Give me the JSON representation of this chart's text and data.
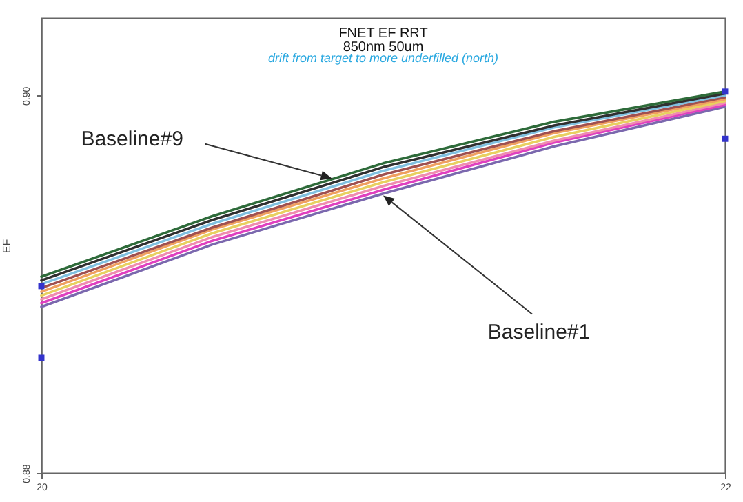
{
  "chart_data": {
    "type": "line",
    "title": "FNET EF RRT",
    "subtitle": "850nm 50um",
    "ylabel": "EF",
    "xlim": [
      20,
      22
    ],
    "xticks": [
      20,
      22
    ],
    "ylim": [
      0.88,
      0.9041
    ],
    "yticks": [
      0.88,
      {
        "value": 0.9,
        "label": "0.90"
      }
    ],
    "grid": false,
    "annotations": [
      "drift from target to more underfilled (north)",
      {
        "text": "Baseline#9",
        "x": 20.85,
        "y": 0.8956
      },
      {
        "text": "Baseline#1",
        "x": 21.0,
        "y": 0.8947
      }
    ],
    "series": [
      {
        "color": "#7b68ae",
        "x": [
          20,
          20.5,
          21,
          21.5,
          22
        ],
        "values": [
          0.8888,
          0.8921,
          0.8948,
          0.8973,
          0.8994
        ]
      },
      {
        "color": "#e040c0",
        "x": [
          20,
          20.5,
          21,
          21.5,
          22
        ],
        "values": [
          0.889,
          0.8923,
          0.895,
          0.8975,
          0.8995
        ]
      },
      {
        "color": "#f08cb0",
        "x": [
          20,
          20.5,
          21,
          21.5,
          22
        ],
        "values": [
          0.8892,
          0.8925,
          0.8952,
          0.8976,
          0.8996
        ]
      },
      {
        "color": "#e8d060",
        "x": [
          20,
          20.5,
          21,
          21.5,
          22
        ],
        "values": [
          0.8894,
          0.8927,
          0.8954,
          0.8978,
          0.8997
        ]
      },
      {
        "color": "#f0a060",
        "x": [
          20,
          20.5,
          21,
          21.5,
          22
        ],
        "values": [
          0.8896,
          0.8929,
          0.8956,
          0.898,
          0.8998
        ]
      },
      {
        "color": "#a05050",
        "x": [
          20,
          20.5,
          21,
          21.5,
          22
        ],
        "values": [
          0.8898,
          0.893,
          0.8958,
          0.8981,
          0.8999
        ]
      },
      {
        "color": "#80c0e0",
        "x": [
          20,
          20.5,
          21,
          21.5,
          22
        ],
        "values": [
          0.89,
          0.8932,
          0.896,
          0.8983,
          0.9
        ]
      },
      {
        "color": "#303030",
        "x": [
          20,
          20.5,
          21,
          21.5,
          22
        ],
        "values": [
          0.8902,
          0.8934,
          0.8962,
          0.8984,
          0.9001
        ]
      },
      {
        "color": "#2e6b3a",
        "x": [
          20,
          20.5,
          21,
          21.5,
          22
        ],
        "values": [
          0.8904,
          0.8936,
          0.8964,
          0.8986,
          0.9002
        ]
      },
      {
        "type": "scatter",
        "color": "#3333cc",
        "x": [
          20,
          20,
          22,
          22
        ],
        "values": [
          0.8899,
          0.8861,
          0.9002,
          0.8977
        ]
      }
    ]
  }
}
